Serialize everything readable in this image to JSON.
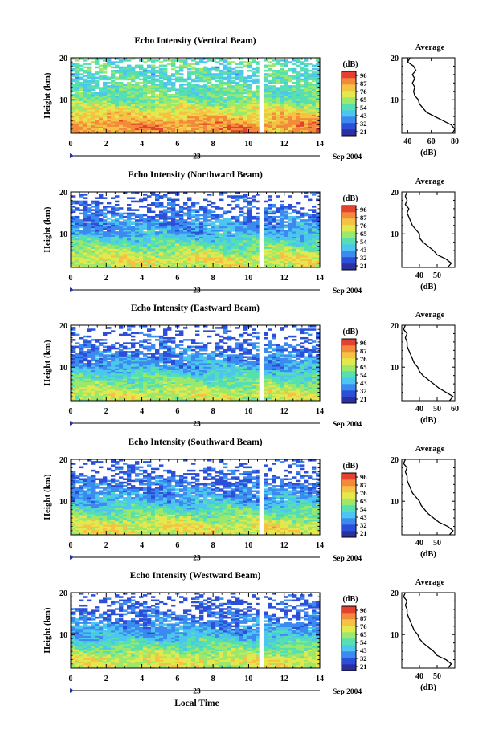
{
  "figure": {
    "xlabel": "Local Time",
    "date_left": "23",
    "date_right": "Sep 2004"
  },
  "colorbar": {
    "unit": "(dB)",
    "ticks": [
      "96",
      "87",
      "76",
      "65",
      "54",
      "43",
      "32",
      "21"
    ],
    "colors": [
      "#2b2fa0",
      "#2c4fd8",
      "#3a8af0",
      "#4cc6ef",
      "#56e0b2",
      "#9ce86b",
      "#e2e94e",
      "#f5c243",
      "#f3893a",
      "#e4422f"
    ]
  },
  "chart_data": [
    {
      "type": "heatmap",
      "title": "Echo Intensity (Vertical Beam)",
      "ylabel": "Height (km)",
      "xlim": [
        0,
        14
      ],
      "ylim": [
        2,
        20
      ],
      "xticks": [
        0,
        2,
        4,
        6,
        8,
        10,
        12,
        14
      ],
      "yticks": [
        10,
        20
      ],
      "z_range_dB": [
        21,
        96
      ],
      "gap_local_time": [
        10.6,
        10.85
      ],
      "profile": {
        "heights_km": [
          2,
          4,
          6,
          8,
          10,
          12,
          14,
          16,
          18,
          20
        ],
        "intensity_dB": [
          80,
          84,
          76,
          68,
          58,
          56,
          54,
          52,
          54,
          55
        ]
      },
      "average": {
        "title": "Average",
        "xlabel": "(dB)",
        "xlim": [
          35,
          80
        ],
        "xticks": [
          40,
          60,
          80
        ],
        "yticks": [
          10,
          20
        ],
        "heights_km": [
          2,
          3,
          4,
          5,
          6,
          7,
          8,
          9,
          10,
          11,
          12,
          13,
          14,
          15,
          16,
          17,
          18,
          19,
          20
        ],
        "values_dB": [
          78,
          80,
          77,
          70,
          63,
          56,
          53,
          50,
          49,
          46,
          45,
          46,
          44,
          46,
          44,
          47,
          45,
          40,
          42
        ]
      }
    },
    {
      "type": "heatmap",
      "title": "Echo Intensity (Northward Beam)",
      "ylabel": "Height (km)",
      "xlim": [
        0,
        14
      ],
      "ylim": [
        2,
        20
      ],
      "xticks": [
        0,
        2,
        4,
        6,
        8,
        10,
        12,
        14
      ],
      "yticks": [
        10,
        20
      ],
      "z_range_dB": [
        21,
        96
      ],
      "gap_local_time": [
        10.6,
        10.85
      ],
      "profile": {
        "heights_km": [
          2,
          4,
          6,
          8,
          10,
          12,
          14,
          16,
          18,
          20
        ],
        "intensity_dB": [
          66,
          70,
          62,
          55,
          45,
          42,
          37,
          33,
          30,
          28
        ]
      },
      "average": {
        "title": "Average",
        "xlabel": "(dB)",
        "xlim": [
          30,
          60
        ],
        "xticks": [
          40,
          50
        ],
        "yticks": [
          10,
          20
        ],
        "heights_km": [
          2,
          3,
          4,
          5,
          6,
          7,
          8,
          9,
          10,
          11,
          12,
          13,
          14,
          15,
          16,
          17,
          18,
          19,
          20
        ],
        "values_dB": [
          56,
          58,
          55,
          50,
          48,
          45,
          42,
          40,
          40,
          38,
          36,
          35,
          34,
          33,
          34,
          32,
          33,
          32,
          33
        ]
      }
    },
    {
      "type": "heatmap",
      "title": "Echo Intensity (Eastward Beam)",
      "ylabel": "Height (km)",
      "xlim": [
        0,
        14
      ],
      "ylim": [
        2,
        20
      ],
      "xticks": [
        0,
        2,
        4,
        6,
        8,
        10,
        12,
        14
      ],
      "yticks": [
        10,
        20
      ],
      "z_range_dB": [
        21,
        96
      ],
      "gap_local_time": [
        10.6,
        10.85
      ],
      "profile": {
        "heights_km": [
          2,
          4,
          6,
          8,
          10,
          12,
          14,
          16,
          18,
          20
        ],
        "intensity_dB": [
          66,
          68,
          60,
          53,
          44,
          40,
          36,
          33,
          30,
          28
        ]
      },
      "average": {
        "title": "Average",
        "xlabel": "(dB)",
        "xlim": [
          30,
          60
        ],
        "xticks": [
          40,
          50,
          60
        ],
        "yticks": [
          10,
          20
        ],
        "heights_km": [
          2,
          3,
          4,
          5,
          6,
          7,
          8,
          9,
          10,
          11,
          12,
          13,
          14,
          15,
          16,
          17,
          18,
          19,
          20
        ],
        "values_dB": [
          57,
          59,
          55,
          51,
          48,
          45,
          42,
          40,
          39,
          37,
          36,
          35,
          34,
          33,
          33,
          32,
          33,
          31,
          32
        ]
      }
    },
    {
      "type": "heatmap",
      "title": "Echo Intensity (Southward Beam)",
      "ylabel": "Height (km)",
      "xlim": [
        0,
        14
      ],
      "ylim": [
        2,
        20
      ],
      "xticks": [
        0,
        2,
        4,
        6,
        8,
        10,
        12,
        14
      ],
      "yticks": [
        10,
        20
      ],
      "z_range_dB": [
        21,
        96
      ],
      "gap_local_time": [
        10.6,
        10.85
      ],
      "profile": {
        "heights_km": [
          2,
          4,
          6,
          8,
          10,
          12,
          14,
          16,
          18,
          20
        ],
        "intensity_dB": [
          68,
          71,
          62,
          55,
          45,
          41,
          37,
          33,
          30,
          28
        ]
      },
      "average": {
        "title": "Average",
        "xlabel": "(dB)",
        "xlim": [
          30,
          60
        ],
        "xticks": [
          40,
          50
        ],
        "yticks": [
          10,
          20
        ],
        "heights_km": [
          2,
          3,
          4,
          5,
          6,
          7,
          8,
          9,
          10,
          11,
          12,
          13,
          14,
          15,
          16,
          17,
          18,
          19,
          20
        ],
        "values_dB": [
          57,
          59,
          56,
          51,
          48,
          45,
          43,
          41,
          40,
          38,
          36,
          35,
          34,
          33,
          33,
          32,
          33,
          31,
          32
        ]
      }
    },
    {
      "type": "heatmap",
      "title": "Echo Intensity (Westward Beam)",
      "ylabel": "Height (km)",
      "xlim": [
        0,
        14
      ],
      "ylim": [
        2,
        20
      ],
      "xticks": [
        0,
        2,
        4,
        6,
        8,
        10,
        12,
        14
      ],
      "yticks": [
        10,
        20
      ],
      "z_range_dB": [
        21,
        96
      ],
      "gap_local_time": [
        10.6,
        10.85
      ],
      "profile": {
        "heights_km": [
          2,
          4,
          6,
          8,
          10,
          12,
          14,
          16,
          18,
          20
        ],
        "intensity_dB": [
          67,
          70,
          61,
          54,
          45,
          41,
          36,
          33,
          30,
          28
        ]
      },
      "average": {
        "title": "Average",
        "xlabel": "(dB)",
        "xlim": [
          30,
          60
        ],
        "xticks": [
          40,
          50
        ],
        "yticks": [
          10,
          20
        ],
        "heights_km": [
          2,
          3,
          4,
          5,
          6,
          7,
          8,
          9,
          10,
          11,
          12,
          13,
          14,
          15,
          16,
          17,
          18,
          19,
          20
        ],
        "values_dB": [
          56,
          58,
          55,
          50,
          48,
          45,
          42,
          40,
          39,
          37,
          36,
          35,
          34,
          33,
          33,
          32,
          33,
          31,
          32
        ]
      }
    }
  ]
}
